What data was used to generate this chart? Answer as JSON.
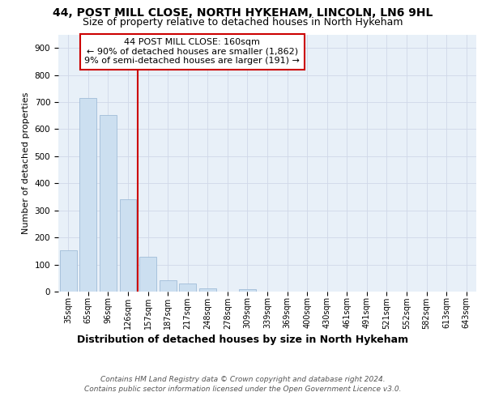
{
  "title_line1": "44, POST MILL CLOSE, NORTH HYKEHAM, LINCOLN, LN6 9HL",
  "title_line2": "Size of property relative to detached houses in North Hykeham",
  "xlabel": "Distribution of detached houses by size in North Hykeham",
  "ylabel": "Number of detached properties",
  "categories": [
    "35sqm",
    "65sqm",
    "96sqm",
    "126sqm",
    "157sqm",
    "187sqm",
    "217sqm",
    "248sqm",
    "278sqm",
    "309sqm",
    "339sqm",
    "369sqm",
    "400sqm",
    "430sqm",
    "461sqm",
    "491sqm",
    "521sqm",
    "552sqm",
    "582sqm",
    "613sqm",
    "643sqm"
  ],
  "values": [
    152,
    715,
    652,
    340,
    128,
    42,
    30,
    12,
    0,
    8,
    0,
    0,
    0,
    0,
    0,
    0,
    0,
    0,
    0,
    0,
    0
  ],
  "bar_color": "#ccdff0",
  "bar_edge_color": "#a0bcd8",
  "vline_color": "#cc0000",
  "vline_x": 4,
  "annotation_line1": "44 POST MILL CLOSE: 160sqm",
  "annotation_line2": "← 90% of detached houses are smaller (1,862)",
  "annotation_line3": "9% of semi-detached houses are larger (191) →",
  "annotation_box_facecolor": "#ffffff",
  "annotation_box_edgecolor": "#cc0000",
  "ylim": [
    0,
    950
  ],
  "yticks": [
    0,
    100,
    200,
    300,
    400,
    500,
    600,
    700,
    800,
    900
  ],
  "grid_color": "#d0d8e8",
  "background_color": "#e8f0f8",
  "footnote_line1": "Contains HM Land Registry data © Crown copyright and database right 2024.",
  "footnote_line2": "Contains public sector information licensed under the Open Government Licence v3.0.",
  "title1_fontsize": 10,
  "title2_fontsize": 9,
  "ylabel_fontsize": 8,
  "xlabel_fontsize": 9,
  "tick_fontsize": 7.5,
  "xtick_fontsize": 7,
  "footnote_fontsize": 6.5,
  "annot_fontsize": 8
}
